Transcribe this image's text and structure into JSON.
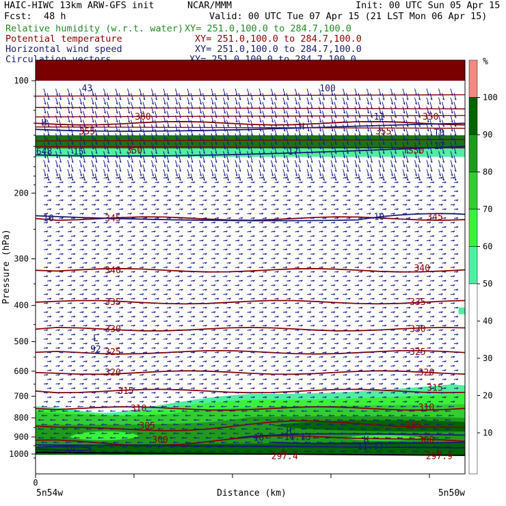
{
  "header": {
    "model": "HAIC-HIWC 13km ARW-GFS init",
    "org": "NCAR/MMM",
    "init": "Init: 00 UTC Sun 05 Apr 15",
    "fcst_label": "Fcst:",
    "fcst_value": "48 h",
    "valid": "Valid: 00 UTC Tue 07 Apr 15 (21 LST Mon 06 Apr 15)",
    "fields": [
      {
        "name": "Relative humidity (w.r.t. water)",
        "xy": "XY= 251.0,100.0 to 284.7,100.0",
        "color": "#228b22"
      },
      {
        "name": "Potential temperature",
        "xy": "XY= 251.0,100.0 to 284.7,100.0",
        "color": "#8b0000"
      },
      {
        "name": "Horizontal wind speed",
        "xy": "XY= 251.0,100.0 to 284.7,100.0",
        "color": "#191970"
      },
      {
        "name": "Circulation vectors",
        "xy": "XY= 251.0,100.0 to 284.7,100.0",
        "color": "#191970"
      }
    ]
  },
  "chart_data": {
    "type": "heatmap",
    "ylabel": "Pressure (hPa)",
    "xlabel": "Distance (km)",
    "x_tick_label": "0",
    "x_left_label": "5n54w",
    "x_right_label": "5n50w",
    "y_ticks": [
      100,
      200,
      300,
      400,
      500,
      600,
      700,
      800,
      900,
      1000
    ],
    "y_range": [
      100,
      1050
    ],
    "y_scale": "log",
    "colorbar": {
      "unit": "%",
      "ticks": [
        10,
        20,
        30,
        40,
        50,
        60,
        70,
        80,
        90,
        100
      ],
      "bins": [
        {
          "range": [
            100,
            110
          ],
          "color": "#f28a80"
        },
        {
          "range": [
            90,
            100
          ],
          "color": "#006400"
        },
        {
          "range": [
            80,
            90
          ],
          "color": "#1f9a1f"
        },
        {
          "range": [
            70,
            80
          ],
          "color": "#32cd32"
        },
        {
          "range": [
            60,
            70
          ],
          "color": "#3cf03c"
        },
        {
          "range": [
            50,
            60
          ],
          "color": "#50eea0"
        }
      ],
      "colors": {
        "c50": "#50eea0",
        "c60": "#3cf03c",
        "c70": "#32cd32",
        "c80": "#1f9a1f",
        "c90": "#006400",
        "c100": "#f28a80",
        "dark": "#7a0000"
      }
    },
    "theta_contours": [
      {
        "label": "350",
        "p": 130
      },
      {
        "label": "345",
        "p": 234
      },
      {
        "label": "340",
        "p": 322
      },
      {
        "label": "335",
        "p": 392
      },
      {
        "label": "330",
        "p": 463
      },
      {
        "label": "325",
        "p": 534
      },
      {
        "label": "320",
        "p": 605
      },
      {
        "label": "315",
        "p": 678
      },
      {
        "label": "310",
        "p": 755
      },
      {
        "label": "305",
        "p": 842
      },
      {
        "label": "300",
        "p": 918
      }
    ],
    "theta_labels": [
      {
        "text": "360",
        "x": 0.25,
        "p": 125
      },
      {
        "text": "350",
        "x": 0.23,
        "p": 154
      },
      {
        "text": "355",
        "x": 0.12,
        "p": 137
      },
      {
        "text": "345",
        "x": 0.18,
        "p": 234
      },
      {
        "text": "340",
        "x": 0.18,
        "p": 322
      },
      {
        "text": "335",
        "x": 0.18,
        "p": 392
      },
      {
        "text": "330",
        "x": 0.18,
        "p": 463
      },
      {
        "text": "325",
        "x": 0.18,
        "p": 534
      },
      {
        "text": "320",
        "x": 0.18,
        "p": 605
      },
      {
        "text": "315",
        "x": 0.21,
        "p": 678
      },
      {
        "text": "310",
        "x": 0.24,
        "p": 755
      },
      {
        "text": "305",
        "x": 0.26,
        "p": 842
      },
      {
        "text": "300",
        "x": 0.29,
        "p": 918
      },
      {
        "text": "350",
        "x": 0.92,
        "p": 125
      },
      {
        "text": "355",
        "x": 0.81,
        "p": 137
      },
      {
        "text": "TS50",
        "x": 0.88,
        "p": 154
      },
      {
        "text": "345",
        "x": 0.93,
        "p": 232
      },
      {
        "text": "340",
        "x": 0.9,
        "p": 318
      },
      {
        "text": "335",
        "x": 0.89,
        "p": 392
      },
      {
        "text": "330",
        "x": 0.89,
        "p": 463
      },
      {
        "text": "325",
        "x": 0.89,
        "p": 534
      },
      {
        "text": "320",
        "x": 0.91,
        "p": 605
      },
      {
        "text": "315",
        "x": 0.93,
        "p": 665
      },
      {
        "text": "310",
        "x": 0.91,
        "p": 750
      },
      {
        "text": "305",
        "x": 0.88,
        "p": 840
      },
      {
        "text": "300",
        "x": 0.91,
        "p": 918
      },
      {
        "text": "297.4",
        "x": 0.58,
        "p": 1015
      },
      {
        "text": "297.9",
        "x": 0.94,
        "p": 1015
      },
      {
        "text": "L",
        "x": 0.58,
        "p": 985
      },
      {
        "text": "L",
        "x": 0.94,
        "p": 985
      }
    ],
    "wind_labels": [
      {
        "text": "43",
        "x": 0.12,
        "p": 105
      },
      {
        "text": "100",
        "x": 0.68,
        "p": 105
      },
      {
        "text": "H",
        "x": 0.02,
        "p": 130
      },
      {
        "text": "H",
        "x": 0.62,
        "p": 133
      },
      {
        "text": "11",
        "x": 0.8,
        "p": 125
      },
      {
        "text": "T0",
        "x": 0.94,
        "p": 138
      },
      {
        "text": "648",
        "x": 0.02,
        "p": 155
      },
      {
        "text": "15",
        "x": 0.1,
        "p": 155
      },
      {
        "text": "17",
        "x": 0.6,
        "p": 155
      },
      {
        "text": "17",
        "x": 0.94,
        "p": 150
      },
      {
        "text": "10",
        "x": 0.03,
        "p": 234
      },
      {
        "text": "10",
        "x": 0.8,
        "p": 232
      },
      {
        "text": "L",
        "x": 0.14,
        "p": 490
      },
      {
        "text": "92",
        "x": 0.14,
        "p": 525
      },
      {
        "text": "H",
        "x": 0.59,
        "p": 870
      },
      {
        "text": "10",
        "x": 0.52,
        "p": 905
      },
      {
        "text": "11.13",
        "x": 0.61,
        "p": 902
      },
      {
        "text": "H",
        "x": 0.77,
        "p": 918
      },
      {
        "text": "11.17",
        "x": 0.78,
        "p": 955
      },
      {
        "text": "10",
        "x": 0.08,
        "p": 980
      }
    ]
  }
}
